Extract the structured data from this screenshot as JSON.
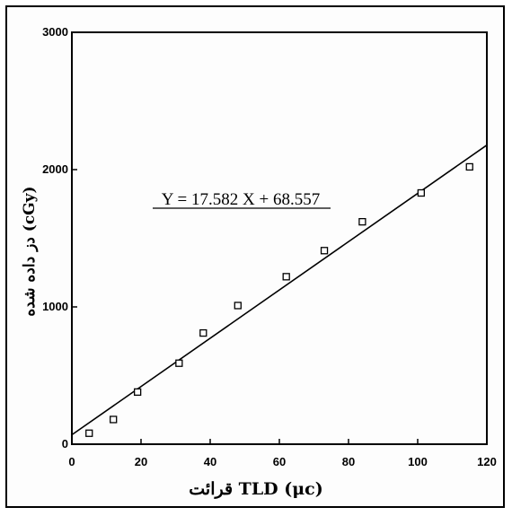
{
  "chart_data": {
    "type": "scatter",
    "title": "",
    "xlabel": "قرائت TLD (μc)",
    "ylabel": "دز داده شده (cGy)",
    "xlim": [
      0,
      120
    ],
    "ylim": [
      0,
      3000
    ],
    "x_ticks": [
      "0",
      "20",
      "40",
      "60",
      "80",
      "100",
      "120"
    ],
    "y_ticks": [
      "0",
      "1000",
      "2000",
      "3000"
    ],
    "grid": false,
    "legend": "none",
    "annotation": "Y = 17.582 X + 68.557",
    "fit_line": {
      "slope": 17.582,
      "intercept": 68.557
    },
    "points": [
      {
        "x": 5,
        "y": 80
      },
      {
        "x": 12,
        "y": 180
      },
      {
        "x": 19,
        "y": 380
      },
      {
        "x": 31,
        "y": 590
      },
      {
        "x": 38,
        "y": 810
      },
      {
        "x": 48,
        "y": 1010
      },
      {
        "x": 62,
        "y": 1220
      },
      {
        "x": 73,
        "y": 1410
      },
      {
        "x": 84,
        "y": 1620
      },
      {
        "x": 101,
        "y": 1830
      },
      {
        "x": 115,
        "y": 2020
      }
    ],
    "colors": {
      "ink": "#000000",
      "background": "#ffffff"
    }
  }
}
